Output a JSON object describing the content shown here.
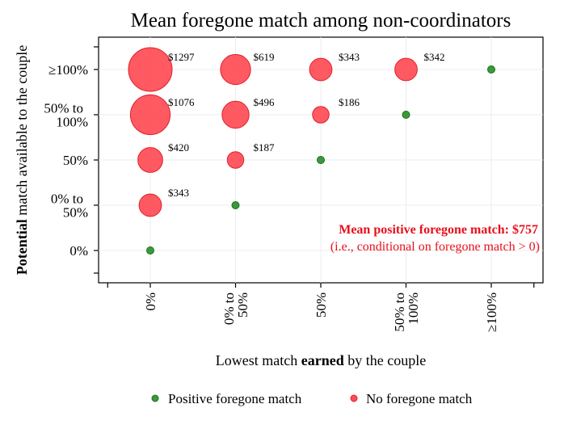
{
  "colors": {
    "no_foregone": "#ff4b55",
    "no_foregone_edge": "#e0202c",
    "positive_foregone": "#3a9a3a",
    "positive_foregone_edge": "#1f6e1f",
    "annotation": "#e8101c",
    "grid": "#ececec"
  },
  "chart_data": {
    "type": "scatter",
    "title": "Mean foregone match among non-coordinators",
    "xlabel": {
      "pre": "Lowest match ",
      "bold": "earned",
      "post": " by the couple"
    },
    "ylabel": {
      "bold": "Potential",
      "post": " match available to the couple"
    },
    "x_categories": [
      {
        "lines": [
          "0%"
        ]
      },
      {
        "lines": [
          "0% to",
          "50%"
        ]
      },
      {
        "lines": [
          "50%"
        ]
      },
      {
        "lines": [
          "50% to",
          "100%"
        ]
      },
      {
        "lines": [
          "≥100%"
        ]
      }
    ],
    "y_categories": [
      {
        "lines": [
          "0%"
        ]
      },
      {
        "lines": [
          "0% to",
          "50%"
        ]
      },
      {
        "lines": [
          "50%"
        ]
      },
      {
        "lines": [
          "50% to",
          "100%"
        ]
      },
      {
        "lines": [
          "≥100%"
        ]
      }
    ],
    "grid": true,
    "legend_position": "bottom",
    "series": [
      {
        "name": "Positive foregone match",
        "color_key": "positive_foregone",
        "points": [
          {
            "x": 0,
            "y": 0
          },
          {
            "x": 1,
            "y": 1
          },
          {
            "x": 2,
            "y": 2
          },
          {
            "x": 3,
            "y": 3
          },
          {
            "x": 4,
            "y": 4
          }
        ]
      },
      {
        "name": "No foregone match",
        "color_key": "no_foregone",
        "points": [
          {
            "x": 0,
            "y": 4,
            "value": 1297,
            "label": "$1297"
          },
          {
            "x": 1,
            "y": 4,
            "value": 619,
            "label": "$619"
          },
          {
            "x": 2,
            "y": 4,
            "value": 343,
            "label": "$343"
          },
          {
            "x": 3,
            "y": 4,
            "value": 342,
            "label": "$342"
          },
          {
            "x": 0,
            "y": 3,
            "value": 1076,
            "label": "$1076"
          },
          {
            "x": 1,
            "y": 3,
            "value": 496,
            "label": "$496"
          },
          {
            "x": 2,
            "y": 3,
            "value": 186,
            "label": "$186"
          },
          {
            "x": 0,
            "y": 2,
            "value": 420,
            "label": "$420"
          },
          {
            "x": 1,
            "y": 2,
            "value": 187,
            "label": "$187"
          },
          {
            "x": 0,
            "y": 1,
            "value": 343,
            "label": "$343"
          }
        ]
      }
    ],
    "annotation": {
      "line1": "Mean positive foregone match: $757",
      "line2": "(i.e., conditional on foregone match > 0)"
    }
  }
}
